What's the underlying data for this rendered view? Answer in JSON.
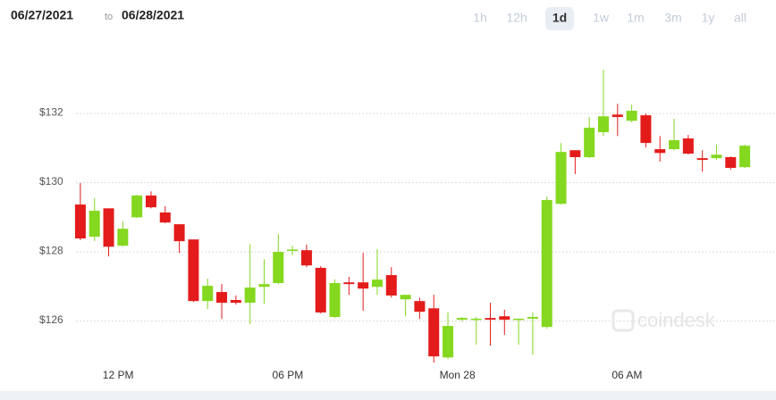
{
  "header": {
    "from": "06/27/2021",
    "separator": "to",
    "to": "06/28/2021"
  },
  "range_buttons": {
    "labels": [
      "1h",
      "12h",
      "1d",
      "1w",
      "1m",
      "3m",
      "1y",
      "all"
    ],
    "selected_index": 2
  },
  "watermark": "coindesk",
  "chart_data": {
    "type": "candlestick",
    "x": [
      0,
      1,
      2,
      3,
      4,
      5,
      6,
      7,
      8,
      9,
      10,
      11,
      12,
      13,
      14,
      15,
      16,
      17,
      18,
      19,
      20,
      21,
      22,
      23,
      24,
      25,
      26,
      27,
      28,
      29,
      30,
      31,
      32,
      33,
      34,
      35,
      36,
      37,
      38,
      39,
      40,
      41,
      42,
      43,
      44,
      45,
      46,
      47
    ],
    "open": [
      129.37,
      128.44,
      129.26,
      128.18,
      129.0,
      129.63,
      129.14,
      128.8,
      128.36,
      126.58,
      126.84,
      126.61,
      126.53,
      126.99,
      127.1,
      128.03,
      128.05,
      127.54,
      126.12,
      127.12,
      127.12,
      126.99,
      127.33,
      126.63,
      126.58,
      126.37,
      124.95,
      126.04,
      126.04,
      126.09,
      126.14,
      126.04,
      126.07,
      125.83,
      129.39,
      130.94,
      130.74,
      131.46,
      131.97,
      131.79,
      131.95,
      130.97,
      130.97,
      131.28,
      130.71,
      130.71,
      130.74,
      130.45
    ],
    "high": [
      129.99,
      129.55,
      129.26,
      128.88,
      129.65,
      129.75,
      129.32,
      128.8,
      128.36,
      127.23,
      127.07,
      126.74,
      128.23,
      127.79,
      128.52,
      128.18,
      128.21,
      127.59,
      127.2,
      127.28,
      127.97,
      128.08,
      127.56,
      126.76,
      126.68,
      126.76,
      126.25,
      126.12,
      126.12,
      126.53,
      126.33,
      126.07,
      126.25,
      129.6,
      131.15,
      130.94,
      131.9,
      133.26,
      132.28,
      132.26,
      132.0,
      131.35,
      131.85,
      131.38,
      130.94,
      131.1,
      130.76,
      131.1
    ],
    "low": [
      128.34,
      128.31,
      127.87,
      128.15,
      128.98,
      129.26,
      128.83,
      127.97,
      126.55,
      126.35,
      126.06,
      126.48,
      125.91,
      126.5,
      127.07,
      127.9,
      127.56,
      126.22,
      126.09,
      126.76,
      126.3,
      126.76,
      126.68,
      126.14,
      126.06,
      124.8,
      124.9,
      125.99,
      125.32,
      125.29,
      125.6,
      125.32,
      125.03,
      125.78,
      129.37,
      130.25,
      130.71,
      131.35,
      131.35,
      131.74,
      131.02,
      130.61,
      130.94,
      130.82,
      130.32,
      130.66,
      130.38,
      130.43
    ],
    "close": [
      128.39,
      129.19,
      128.15,
      128.67,
      129.63,
      129.29,
      128.85,
      128.31,
      126.58,
      127.02,
      126.53,
      126.53,
      126.97,
      127.07,
      128.0,
      128.07,
      127.61,
      126.25,
      127.1,
      127.07,
      126.94,
      127.2,
      126.74,
      126.76,
      126.27,
      124.98,
      125.86,
      126.09,
      126.07,
      126.04,
      126.04,
      126.07,
      126.12,
      129.5,
      130.89,
      130.74,
      131.59,
      131.92,
      131.9,
      132.08,
      131.15,
      130.86,
      131.23,
      130.84,
      130.66,
      130.81,
      130.43,
      131.07
    ],
    "up_color": "#84d81f",
    "down_color": "#e41b1b",
    "xlim": [
      -0.5,
      47.5
    ],
    "xticks": [
      {
        "value": 2.67,
        "label": "12 PM"
      },
      {
        "value": 14.67,
        "label": "06 PM"
      },
      {
        "value": 26.67,
        "label": "Mon 28"
      },
      {
        "value": 38.67,
        "label": "06 AM"
      }
    ],
    "ylim": [
      124.7,
      134.25
    ],
    "yticks": [
      {
        "value": 126,
        "label": "$126"
      },
      {
        "value": 128,
        "label": "$128"
      },
      {
        "value": 130,
        "label": "$130"
      },
      {
        "value": 132,
        "label": "$132"
      }
    ],
    "grid": true
  }
}
